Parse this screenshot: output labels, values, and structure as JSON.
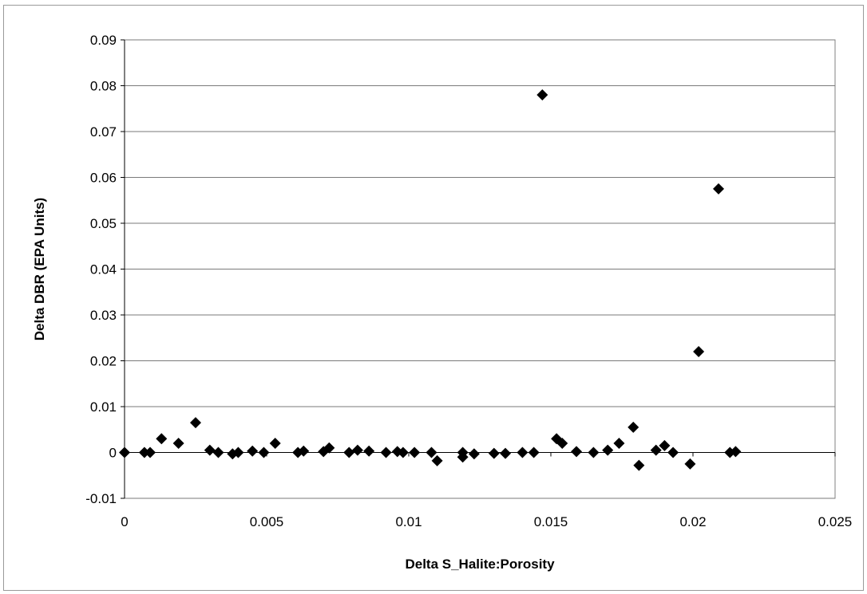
{
  "chart_data": {
    "type": "scatter",
    "title": "",
    "xlabel": "Delta S_Halite:Porosity",
    "ylabel": "Delta DBR (EPA Units)",
    "xlim": [
      0,
      0.025
    ],
    "ylim": [
      -0.01,
      0.09
    ],
    "xticks": [
      "0",
      "0.005",
      "0.01",
      "0.015",
      "0.02",
      "0.025"
    ],
    "yticks": [
      "0.09",
      "0.08",
      "0.07",
      "0.06",
      "0.05",
      "0.04",
      "0.03",
      "0.02",
      "0.01",
      "0",
      "-0.01"
    ],
    "grid": "horizontal major gridlines",
    "legend": "none",
    "marker": "diamond",
    "marker_color": "#000000",
    "points": [
      {
        "x": 0.0,
        "y": 0.0
      },
      {
        "x": 0.0007,
        "y": 0.0
      },
      {
        "x": 0.0009,
        "y": 0.0
      },
      {
        "x": 0.0013,
        "y": 0.003
      },
      {
        "x": 0.0019,
        "y": 0.002
      },
      {
        "x": 0.0025,
        "y": 0.0065
      },
      {
        "x": 0.003,
        "y": 0.0005
      },
      {
        "x": 0.0033,
        "y": 0.0
      },
      {
        "x": 0.0038,
        "y": -0.0003
      },
      {
        "x": 0.004,
        "y": 0.0
      },
      {
        "x": 0.0045,
        "y": 0.0003
      },
      {
        "x": 0.0049,
        "y": 0.0
      },
      {
        "x": 0.0053,
        "y": 0.002
      },
      {
        "x": 0.0061,
        "y": 0.0
      },
      {
        "x": 0.0063,
        "y": 0.0003
      },
      {
        "x": 0.007,
        "y": 0.0002
      },
      {
        "x": 0.0072,
        "y": 0.001
      },
      {
        "x": 0.0079,
        "y": 0.0
      },
      {
        "x": 0.0082,
        "y": 0.0005
      },
      {
        "x": 0.0086,
        "y": 0.0003
      },
      {
        "x": 0.0092,
        "y": 0.0
      },
      {
        "x": 0.0096,
        "y": 0.0002
      },
      {
        "x": 0.0098,
        "y": 0.0
      },
      {
        "x": 0.0102,
        "y": 0.0
      },
      {
        "x": 0.0108,
        "y": 0.0
      },
      {
        "x": 0.011,
        "y": -0.0018
      },
      {
        "x": 0.0119,
        "y": 0.0
      },
      {
        "x": 0.0119,
        "y": -0.001
      },
      {
        "x": 0.0123,
        "y": -0.0003
      },
      {
        "x": 0.013,
        "y": -0.0002
      },
      {
        "x": 0.0134,
        "y": -0.0002
      },
      {
        "x": 0.014,
        "y": 0.0
      },
      {
        "x": 0.0144,
        "y": 0.0
      },
      {
        "x": 0.0147,
        "y": 0.078
      },
      {
        "x": 0.0152,
        "y": 0.003
      },
      {
        "x": 0.0154,
        "y": 0.002
      },
      {
        "x": 0.0159,
        "y": 0.0002
      },
      {
        "x": 0.0165,
        "y": 0.0
      },
      {
        "x": 0.017,
        "y": 0.0005
      },
      {
        "x": 0.0174,
        "y": 0.002
      },
      {
        "x": 0.0179,
        "y": 0.0055
      },
      {
        "x": 0.0181,
        "y": -0.0028
      },
      {
        "x": 0.0187,
        "y": 0.0005
      },
      {
        "x": 0.019,
        "y": 0.0015
      },
      {
        "x": 0.0193,
        "y": 0.0
      },
      {
        "x": 0.0199,
        "y": -0.0025
      },
      {
        "x": 0.0202,
        "y": 0.022
      },
      {
        "x": 0.0209,
        "y": 0.0575
      },
      {
        "x": 0.0213,
        "y": 0.0
      },
      {
        "x": 0.0215,
        "y": 0.0002
      }
    ]
  }
}
